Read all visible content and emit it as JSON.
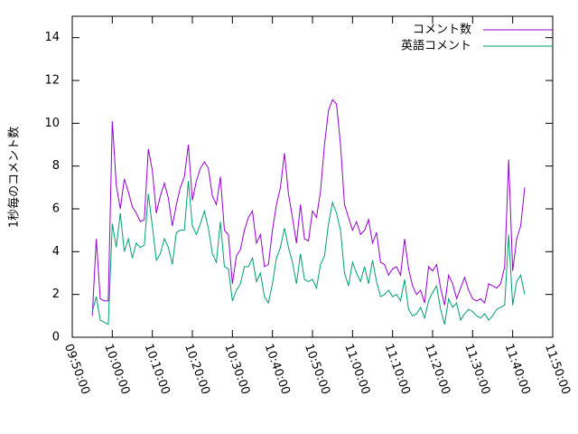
{
  "chart_data": {
    "type": "line",
    "y_label": "1秒毎のコメント数",
    "x": [
      "09:55:00",
      "09:56:00",
      "09:57:00",
      "09:58:00",
      "09:59:00",
      "10:00:00",
      "10:01:00",
      "10:02:00",
      "10:03:00",
      "10:04:00",
      "10:05:00",
      "10:06:00",
      "10:07:00",
      "10:08:00",
      "10:09:00",
      "10:10:00",
      "10:11:00",
      "10:12:00",
      "10:13:00",
      "10:14:00",
      "10:15:00",
      "10:16:00",
      "10:17:00",
      "10:18:00",
      "10:19:00",
      "10:20:00",
      "10:21:00",
      "10:22:00",
      "10:23:00",
      "10:24:00",
      "10:25:00",
      "10:26:00",
      "10:27:00",
      "10:28:00",
      "10:29:00",
      "10:30:00",
      "10:31:00",
      "10:32:00",
      "10:33:00",
      "10:34:00",
      "10:35:00",
      "10:36:00",
      "10:37:00",
      "10:38:00",
      "10:39:00",
      "10:40:00",
      "10:41:00",
      "10:42:00",
      "10:43:00",
      "10:44:00",
      "10:45:00",
      "10:46:00",
      "10:47:00",
      "10:48:00",
      "10:49:00",
      "10:50:00",
      "10:51:00",
      "10:52:00",
      "10:53:00",
      "10:54:00",
      "10:55:00",
      "10:56:00",
      "10:57:00",
      "10:58:00",
      "10:59:00",
      "11:00:00",
      "11:01:00",
      "11:02:00",
      "11:03:00",
      "11:04:00",
      "11:05:00",
      "11:06:00",
      "11:07:00",
      "11:08:00",
      "11:09:00",
      "11:10:00",
      "11:11:00",
      "11:12:00",
      "11:13:00",
      "11:14:00",
      "11:15:00",
      "11:16:00",
      "11:17:00",
      "11:18:00",
      "11:19:00",
      "11:20:00",
      "11:21:00",
      "11:22:00",
      "11:23:00",
      "11:24:00",
      "11:25:00",
      "11:26:00",
      "11:27:00",
      "11:28:00",
      "11:29:00",
      "11:30:00",
      "11:31:00",
      "11:32:00",
      "11:33:00",
      "11:34:00",
      "11:35:00",
      "11:36:00",
      "11:37:00",
      "11:38:00",
      "11:39:00",
      "11:40:00",
      "11:41:00",
      "11:42:00",
      "11:43:00"
    ],
    "series": [
      {
        "name": "コメント数",
        "color": "#9400d3",
        "values": [
          1.0,
          4.6,
          1.8,
          1.7,
          1.7,
          10.1,
          7.1,
          6.0,
          7.4,
          6.8,
          6.1,
          5.8,
          5.4,
          5.5,
          8.8,
          7.8,
          5.8,
          6.6,
          7.2,
          6.5,
          5.2,
          6.2,
          7.0,
          7.5,
          9.0,
          6.4,
          7.3,
          7.9,
          8.2,
          7.9,
          6.6,
          6.2,
          7.5,
          5.0,
          4.8,
          2.5,
          3.8,
          4.1,
          5.0,
          5.6,
          5.9,
          4.4,
          4.8,
          3.3,
          3.4,
          5.0,
          6.2,
          7.0,
          8.6,
          6.7,
          5.6,
          4.4,
          6.2,
          4.6,
          4.5,
          5.9,
          5.6,
          6.8,
          9.0,
          10.6,
          11.1,
          10.9,
          9.0,
          6.2,
          5.6,
          5.0,
          5.4,
          4.8,
          5.0,
          5.5,
          4.4,
          4.9,
          3.5,
          3.4,
          2.9,
          3.2,
          3.3,
          2.9,
          4.6,
          3.2,
          2.4,
          2.0,
          2.2,
          1.6,
          3.3,
          3.1,
          3.4,
          2.3,
          1.5,
          2.9,
          2.5,
          1.8,
          2.3,
          2.8,
          2.2,
          1.8,
          1.7,
          1.8,
          1.6,
          2.5,
          2.4,
          2.3,
          2.5,
          3.3,
          8.3,
          3.1,
          4.6,
          5.2,
          7.0
        ]
      },
      {
        "name": "英語コメント",
        "color": "#009e73",
        "values": [
          1.2,
          1.9,
          0.8,
          0.7,
          0.6,
          5.3,
          4.2,
          5.8,
          4.0,
          4.6,
          3.7,
          4.4,
          4.2,
          4.3,
          6.7,
          5.2,
          3.6,
          3.9,
          4.6,
          4.2,
          3.4,
          4.9,
          5.0,
          5.0,
          7.3,
          5.2,
          4.8,
          5.3,
          5.9,
          5.1,
          3.9,
          3.5,
          5.4,
          3.3,
          3.2,
          1.7,
          2.2,
          2.5,
          3.3,
          3.3,
          3.7,
          2.6,
          3.0,
          1.9,
          1.6,
          2.5,
          3.7,
          4.2,
          5.1,
          4.2,
          3.5,
          2.5,
          3.9,
          2.7,
          2.6,
          2.7,
          2.3,
          3.4,
          3.8,
          5.3,
          6.3,
          5.8,
          5.0,
          3.0,
          2.4,
          3.5,
          3.0,
          2.6,
          3.3,
          2.5,
          3.6,
          2.6,
          1.9,
          2.0,
          2.2,
          1.9,
          2.0,
          1.7,
          2.7,
          1.3,
          1.0,
          1.1,
          1.4,
          0.9,
          1.7,
          2.1,
          2.4,
          1.3,
          0.6,
          1.8,
          1.4,
          1.6,
          0.8,
          1.1,
          1.3,
          1.2,
          1.0,
          0.9,
          1.1,
          0.8,
          1.0,
          1.3,
          1.4,
          1.5,
          4.8,
          1.5,
          2.6,
          2.9,
          2.0
        ]
      }
    ],
    "xlim": [
      "09:50:00",
      "11:50:00"
    ],
    "xticks": [
      "09:50:00",
      "10:00:00",
      "10:10:00",
      "10:20:00",
      "10:30:00",
      "10:40:00",
      "10:50:00",
      "11:00:00",
      "11:10:00",
      "11:20:00",
      "11:30:00",
      "11:40:00",
      "11:50:00"
    ],
    "ylim": [
      0,
      15
    ],
    "yticks": [
      0,
      2,
      4,
      6,
      8,
      10,
      12,
      14
    ],
    "grid": false,
    "legend": "top-right"
  }
}
